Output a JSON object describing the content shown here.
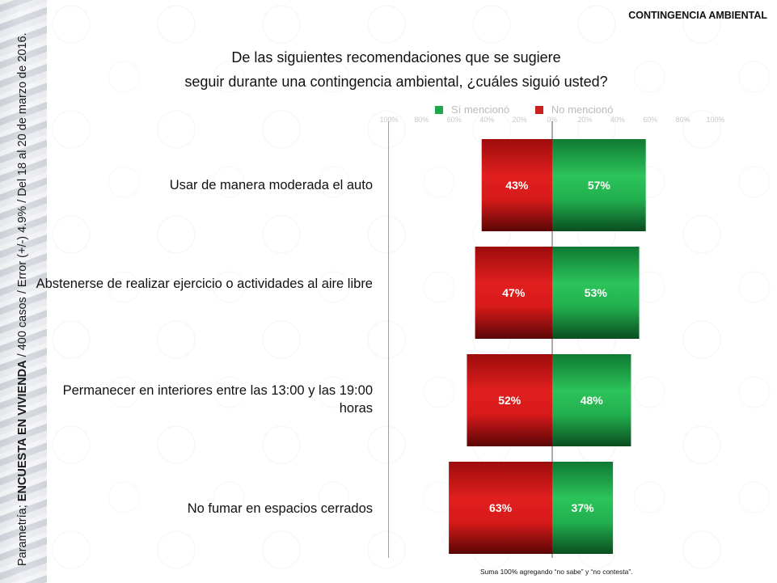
{
  "header": {
    "tag": "CONTINGENCIA AMBIENTAL"
  },
  "side": {
    "prefix": "Parametría; ",
    "survey": "ENCUESTA EN VIVIENDA",
    "details": " / 400 casos / Error (+/-) 4.9% / Del 18 al 20 de marzo de 2016."
  },
  "title_lines": [
    "De las siguientes recomendaciones que se sugiere",
    "seguir durante una contingencia ambiental, ¿cuáles siguió usted?"
  ],
  "legend": [
    {
      "label": "Sí mencionó",
      "color": "#1ea84a"
    },
    {
      "label": "No mencionó",
      "color": "#cc1f1f"
    }
  ],
  "footnote": "Suma 100% agregando “no sabe” y “no contesta”.",
  "chart_data": {
    "type": "bar",
    "orientation": "horizontal-diverging",
    "categories": [
      "Usar de manera moderada el auto",
      "Abstenerse de realizar ejercicio o actividades al aire libre",
      "Permanecer en interiores entre las 13:00 y las 19:00 horas",
      "No fumar en espacios cerrados"
    ],
    "series": [
      {
        "name": "No mencionó",
        "values": [
          43,
          47,
          52,
          63
        ],
        "color": "#cc1f1f",
        "labels": [
          "43%",
          "47%",
          "52%",
          "63%"
        ]
      },
      {
        "name": "Sí mencionó",
        "values": [
          57,
          53,
          48,
          37
        ],
        "color": "#1ea84a",
        "labels": [
          "57%",
          "53%",
          "48%",
          "37%"
        ]
      }
    ],
    "xlim": [
      -100,
      100
    ],
    "axis_ticks": [
      "100%",
      "80%",
      "60%",
      "40%",
      "20%",
      "0%",
      "20%",
      "40%",
      "60%",
      "80%",
      "100%"
    ],
    "legend_position": "top",
    "grid": false
  }
}
